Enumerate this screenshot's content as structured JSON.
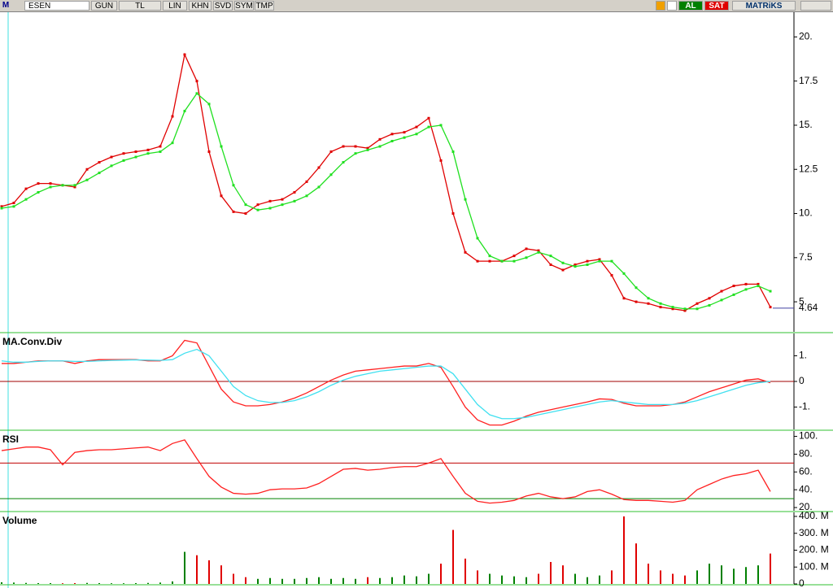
{
  "toolbar": {
    "logo": "M",
    "symbol": "ESEN",
    "buttons": [
      "GUN",
      "TL",
      "LIN",
      "KHN",
      "SVD",
      "SYM",
      "TMP"
    ],
    "buy": "AL",
    "sell": "SAT",
    "brand": "MATRiKS"
  },
  "chart_data": [
    {
      "type": "line",
      "last_value": 4.64,
      "ylim": [
        3.3,
        21.4
      ],
      "yticks": [
        {
          "value": 20,
          "label": "20."
        },
        17.5,
        {
          "value": 15,
          "label": "15."
        },
        12.5,
        {
          "value": 10,
          "label": "10."
        },
        7.5,
        {
          "value": 5,
          "label": "5."
        }
      ],
      "series": [
        {
          "color": "#e00000",
          "values": [
            10.4,
            10.6,
            11.4,
            11.7,
            11.7,
            11.6,
            11.5,
            12.5,
            12.9,
            13.2,
            13.4,
            13.5,
            13.6,
            13.8,
            15.5,
            19,
            17.5,
            13.5,
            11,
            10.1,
            10,
            10.5,
            10.7,
            10.8,
            11.2,
            11.8,
            12.6,
            13.5,
            13.8,
            13.8,
            13.7,
            14.2,
            14.5,
            14.6,
            14.9,
            15.4,
            13,
            10,
            7.8,
            7.3,
            7.3,
            7.3,
            7.6,
            8,
            7.9,
            7.1,
            6.8,
            7.1,
            7.3,
            7.4,
            6.5,
            5.2,
            5,
            4.9,
            4.7,
            4.6,
            4.5,
            4.9,
            5.2,
            5.6,
            5.9,
            6,
            6,
            4.7
          ]
        },
        {
          "color": "#20e020",
          "values": [
            10.3,
            10.4,
            10.8,
            11.2,
            11.5,
            11.6,
            11.6,
            11.9,
            12.3,
            12.7,
            13,
            13.2,
            13.4,
            13.5,
            14,
            15.8,
            16.8,
            16.2,
            13.8,
            11.6,
            10.5,
            10.2,
            10.3,
            10.5,
            10.7,
            11,
            11.5,
            12.2,
            12.9,
            13.4,
            13.6,
            13.8,
            14.1,
            14.3,
            14.5,
            14.9,
            15,
            13.5,
            10.8,
            8.6,
            7.6,
            7.3,
            7.3,
            7.5,
            7.8,
            7.6,
            7.2,
            7,
            7.1,
            7.3,
            7.3,
            6.6,
            5.8,
            5.2,
            4.9,
            4.7,
            4.6,
            4.6,
            4.8,
            5.1,
            5.4,
            5.7,
            5.9,
            5.6
          ]
        }
      ]
    },
    {
      "type": "line",
      "title": "MA.Conv.Div",
      "ylim": [
        -1.87,
        1.87
      ],
      "yticks": [
        {
          "value": 1,
          "label": "1."
        },
        0,
        {
          "value": -1,
          "label": "-1."
        }
      ],
      "ref_lines": [
        {
          "value": 0,
          "color": "#a00000"
        }
      ],
      "series": [
        {
          "color": "#ff2020",
          "values": [
            0.7,
            0.7,
            0.75,
            0.8,
            0.8,
            0.8,
            0.7,
            0.8,
            0.85,
            0.85,
            0.85,
            0.85,
            0.8,
            0.8,
            1,
            1.6,
            1.5,
            0.6,
            -0.3,
            -0.8,
            -0.95,
            -0.95,
            -0.9,
            -0.8,
            -0.65,
            -0.45,
            -0.2,
            0.05,
            0.25,
            0.4,
            0.45,
            0.5,
            0.55,
            0.6,
            0.6,
            0.7,
            0.55,
            -0.2,
            -1,
            -1.5,
            -1.7,
            -1.7,
            -1.55,
            -1.35,
            -1.2,
            -1.1,
            -1,
            -0.9,
            -0.8,
            -0.68,
            -0.7,
            -0.85,
            -0.95,
            -0.95,
            -0.95,
            -0.9,
            -0.8,
            -0.6,
            -0.4,
            -0.25,
            -0.1,
            0.05,
            0.1,
            -0.05
          ]
        },
        {
          "color": "#40e0f0",
          "values": [
            0.8,
            0.75,
            0.75,
            0.78,
            0.8,
            0.8,
            0.78,
            0.78,
            0.8,
            0.82,
            0.83,
            0.84,
            0.83,
            0.82,
            0.85,
            1.1,
            1.25,
            1,
            0.4,
            -0.2,
            -0.55,
            -0.75,
            -0.82,
            -0.82,
            -0.75,
            -0.6,
            -0.4,
            -0.15,
            0.05,
            0.2,
            0.3,
            0.4,
            0.45,
            0.5,
            0.55,
            0.6,
            0.6,
            0.3,
            -0.3,
            -0.9,
            -1.3,
            -1.45,
            -1.45,
            -1.4,
            -1.3,
            -1.2,
            -1.1,
            -1,
            -0.9,
            -0.8,
            -0.75,
            -0.8,
            -0.85,
            -0.9,
            -0.9,
            -0.9,
            -0.85,
            -0.75,
            -0.6,
            -0.45,
            -0.3,
            -0.15,
            -0.05,
            0
          ]
        }
      ]
    },
    {
      "type": "line",
      "title": "RSI",
      "ylim": [
        16.4,
        106
      ],
      "yticks": [
        {
          "value": 100,
          "label": "100."
        },
        {
          "value": 80,
          "label": "80."
        },
        {
          "value": 60,
          "label": "60."
        },
        {
          "value": 40,
          "label": "40."
        },
        {
          "value": 20,
          "label": "20."
        }
      ],
      "ref_lines": [
        {
          "value": 70,
          "color": "#c00000"
        },
        {
          "value": 30,
          "color": "#008000"
        }
      ],
      "series": [
        {
          "color": "#ff2020",
          "values": [
            84,
            86,
            88,
            88,
            85,
            68,
            82,
            84,
            85,
            85,
            86,
            87,
            88,
            84,
            92,
            96,
            75,
            55,
            43,
            36,
            35,
            36,
            40,
            41,
            41,
            42,
            47,
            55,
            63,
            64,
            62,
            63,
            65,
            66,
            66,
            70,
            75,
            55,
            36,
            27,
            25,
            26,
            28,
            33,
            36,
            32,
            30,
            32,
            38,
            40,
            35,
            29,
            28,
            28,
            27,
            26,
            28,
            40,
            46,
            52,
            56,
            58,
            62,
            38
          ]
        }
      ]
    },
    {
      "type": "bar",
      "title": "Volume",
      "ylim": [
        0,
        424
      ],
      "yticks": [
        {
          "value": 400,
          "label": "400. M"
        },
        {
          "value": 300,
          "label": "300. M"
        },
        {
          "value": 200,
          "label": "200. M"
        },
        {
          "value": 100,
          "label": "100. M"
        },
        0
      ],
      "up_color": "#008000",
      "down_color": "#e00000",
      "values": [
        10,
        8,
        6,
        5,
        5,
        4,
        5,
        6,
        5,
        4,
        4,
        5,
        6,
        8,
        15,
        190,
        170,
        140,
        110,
        60,
        40,
        30,
        35,
        30,
        30,
        35,
        40,
        30,
        35,
        30,
        40,
        35,
        40,
        50,
        45,
        60,
        120,
        320,
        150,
        80,
        60,
        50,
        45,
        40,
        60,
        130,
        110,
        60,
        40,
        50,
        80,
        400,
        240,
        120,
        80,
        60,
        50,
        80,
        120,
        110,
        90,
        100,
        110,
        180
      ]
    }
  ]
}
